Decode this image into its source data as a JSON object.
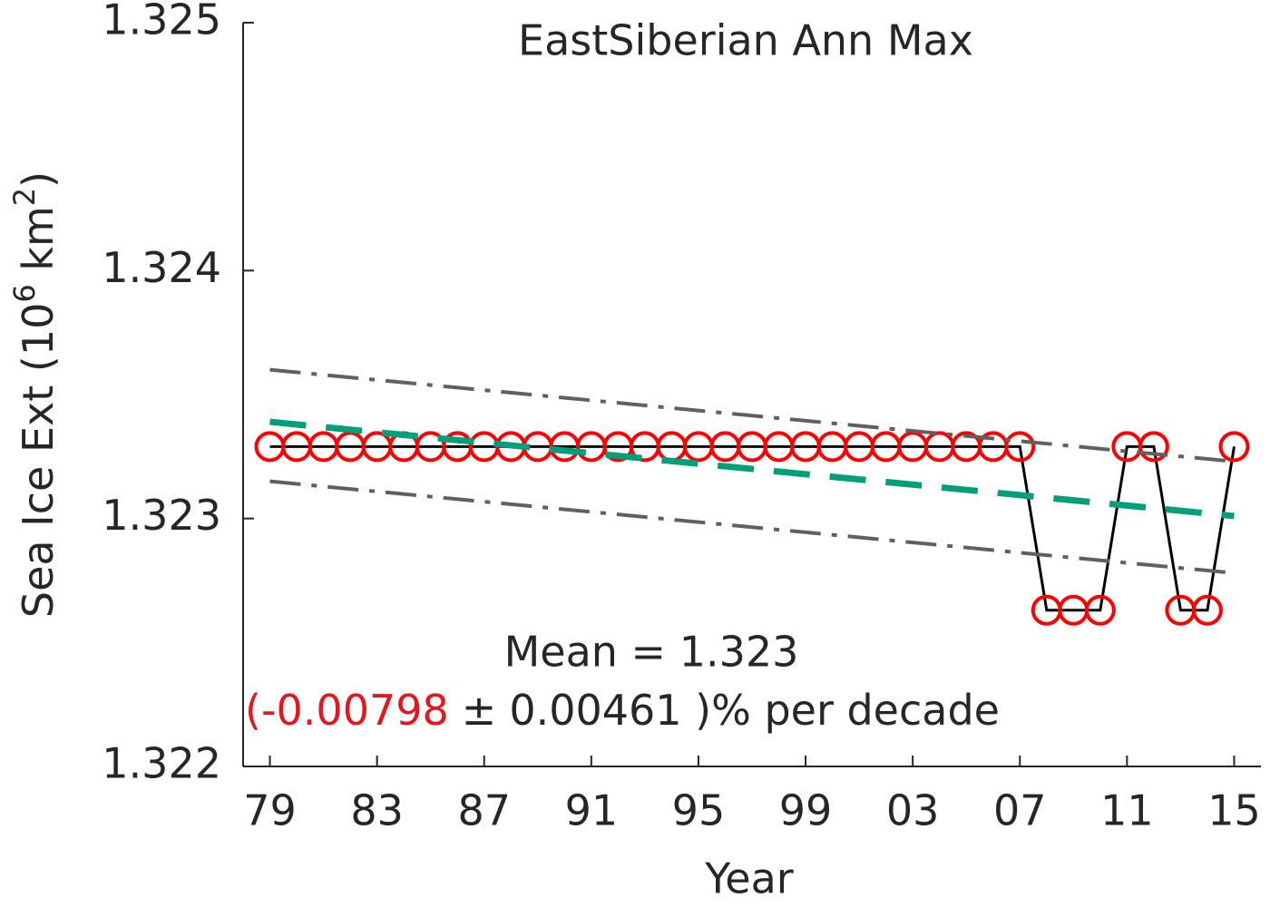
{
  "chart_data": {
    "type": "line",
    "title": "EastSiberian Ann Max",
    "xlabel": "Year",
    "ylabel": {
      "text": "Sea Ice Ext (10",
      "sup1": "6",
      "mid": " km",
      "sup2": "2",
      "end": ")"
    },
    "x": [
      1979,
      1980,
      1981,
      1982,
      1983,
      1984,
      1985,
      1986,
      1987,
      1988,
      1989,
      1990,
      1991,
      1992,
      1993,
      1994,
      1995,
      1996,
      1997,
      1998,
      1999,
      2000,
      2001,
      2002,
      2003,
      2004,
      2005,
      2006,
      2007,
      2008,
      2009,
      2010,
      2011,
      2012,
      2013,
      2014,
      2015
    ],
    "series": [
      {
        "color": "#000000",
        "marker_color": "#ff0000",
        "values": [
          1.32329,
          1.32329,
          1.32329,
          1.32329,
          1.32329,
          1.32329,
          1.32329,
          1.32329,
          1.32329,
          1.32329,
          1.32329,
          1.32329,
          1.32329,
          1.32329,
          1.32329,
          1.32329,
          1.32329,
          1.32329,
          1.32329,
          1.32329,
          1.32329,
          1.32329,
          1.32329,
          1.32329,
          1.32329,
          1.32329,
          1.32329,
          1.32329,
          1.32329,
          1.32263,
          1.32263,
          1.32263,
          1.32329,
          1.32329,
          1.32263,
          1.32263,
          1.32329
        ]
      }
    ],
    "fit_lines": [
      {
        "style": "dashed",
        "color": "#00a07a",
        "x": [
          1979,
          2015
        ],
        "values": [
          1.32339,
          1.32301
        ]
      },
      {
        "style": "dashdot",
        "color": "#606060",
        "x": [
          1979,
          2015
        ],
        "values": [
          1.3236,
          1.32323
        ]
      },
      {
        "style": "dashdot",
        "color": "#606060",
        "x": [
          1979,
          2015
        ],
        "values": [
          1.32315,
          1.32278
        ]
      }
    ],
    "annotations": {
      "mean": "Mean = 1.323",
      "trend": "(-0.00798",
      "pm": "±",
      "error": "0.00461 )% per decade",
      "trend_color": "#e8141c"
    },
    "xlim": [
      1978,
      2016
    ],
    "ylim": [
      1.322,
      1.325
    ],
    "xticks": [
      {
        "value": 1979,
        "label": "79"
      },
      {
        "value": 1983,
        "label": "83"
      },
      {
        "value": 1987,
        "label": "87"
      },
      {
        "value": 1991,
        "label": "91"
      },
      {
        "value": 1995,
        "label": "95"
      },
      {
        "value": 1999,
        "label": "99"
      },
      {
        "value": 2003,
        "label": "03"
      },
      {
        "value": 2007,
        "label": "07"
      },
      {
        "value": 2011,
        "label": "11"
      },
      {
        "value": 2015,
        "label": "15"
      }
    ],
    "yticks": [
      1.322,
      1.323,
      1.324,
      1.325
    ]
  }
}
